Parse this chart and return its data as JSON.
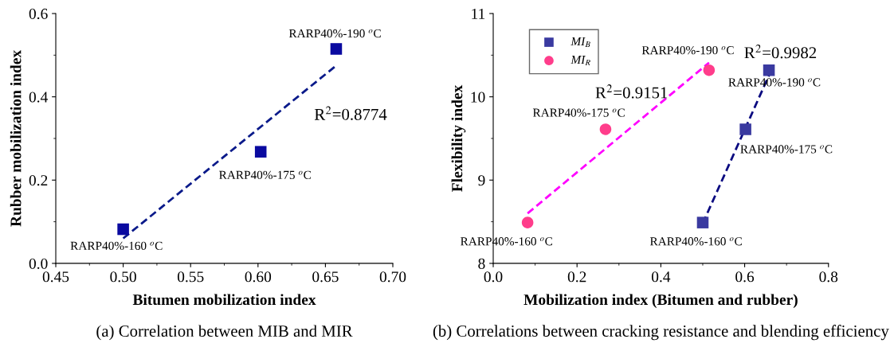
{
  "chart_data": [
    {
      "type": "scatter",
      "title": "(a) Correlation between MIB and MIR",
      "xlabel": "Bitumen mobilization index",
      "ylabel": "Rubber mobilization index",
      "xlim": [
        0.45,
        0.7
      ],
      "xticks": [
        {
          "value": 0.45,
          "label": "0.45"
        },
        {
          "value": 0.5,
          "label": "0.50"
        },
        {
          "value": 0.55,
          "label": "0.55"
        },
        {
          "value": 0.6,
          "label": "0.60"
        },
        {
          "value": 0.65,
          "label": "0.65"
        },
        {
          "value": 0.7,
          "label": "0.70"
        }
      ],
      "ylim": [
        0.0,
        0.6
      ],
      "yticks": [
        {
          "value": 0,
          "label": "0.0"
        },
        0.2,
        0.4,
        0.6
      ],
      "grid": false,
      "legend": false,
      "series": [
        {
          "marker": "square",
          "color": "#0a0aa0",
          "x": [
            0.5,
            0.602,
            0.658
          ],
          "values": [
            0.082,
            0.268,
            0.515
          ]
        },
        {
          "type": "line",
          "line_style": "dashed",
          "color": "#0a1a8a",
          "x": [
            0.5,
            0.658
          ],
          "values": [
            0.06,
            0.475
          ]
        }
      ],
      "annotations": [
        {
          "text": "RARP40%-160 $^{o}$C",
          "x": 0.5,
          "y": 0.082
        },
        {
          "text": "RARP40%-175 $^{o}$C",
          "x": 0.602,
          "y": 0.268
        },
        {
          "text": "RARP40%-190 $^{o}$C",
          "x": 0.658,
          "y": 0.515
        },
        "R$^{2}$=0.8774"
      ]
    },
    {
      "type": "scatter",
      "title": "(b) Correlations between cracking resistance and blending efficiency",
      "xlabel": "Mobilization index (Bitumen and rubber)",
      "ylabel": "Flexibility index",
      "xlim": [
        0.0,
        0.8
      ],
      "xticks": [
        {
          "value": 0,
          "label": "0.0"
        },
        0.2,
        0.4,
        0.6,
        0.8
      ],
      "ylim": [
        8,
        11
      ],
      "yticks": [
        8,
        9,
        10,
        11
      ],
      "grid": false,
      "legend": "top left",
      "series": [
        {
          "name": "MI$_{B}$",
          "marker": "square",
          "color": "#3a3aa0",
          "x": [
            0.5,
            0.602,
            0.658
          ],
          "values": [
            8.49,
            9.61,
            10.32
          ]
        },
        {
          "name": "MI$_{R}$",
          "marker": "circle",
          "color": "#ff3d8b",
          "x": [
            0.082,
            0.268,
            0.515
          ],
          "values": [
            8.49,
            9.61,
            10.32
          ]
        },
        {
          "type": "line",
          "line_style": "dashed",
          "color": "#0a0a80",
          "x": [
            0.5,
            0.66
          ],
          "values": [
            8.48,
            10.28
          ]
        },
        {
          "type": "line",
          "line_style": "dashed",
          "color": "#ff00ff",
          "x": [
            0.082,
            0.515
          ],
          "values": [
            8.6,
            10.41
          ]
        }
      ],
      "annotations": [
        {
          "text": "RARP40%-160 $^{o}$C",
          "x": 0.082,
          "y": 8.49
        },
        {
          "text": "RARP40%-175 $^{o}$C",
          "x": 0.268,
          "y": 9.61
        },
        {
          "text": "RARP40%-190 $^{o}$C",
          "x": 0.515,
          "y": 10.32
        },
        {
          "text": "RARP40%-160 $^{o}$C",
          "x": 0.5,
          "y": 8.49
        },
        {
          "text": "RARP40%-175 $^{o}$C",
          "x": 0.602,
          "y": 9.61
        },
        {
          "text": "RARP40%-190 $^{o}$C",
          "x": 0.658,
          "y": 10.32
        },
        "R$^{2}$=0.9151",
        "R$^{2}$=0.9982"
      ]
    }
  ]
}
